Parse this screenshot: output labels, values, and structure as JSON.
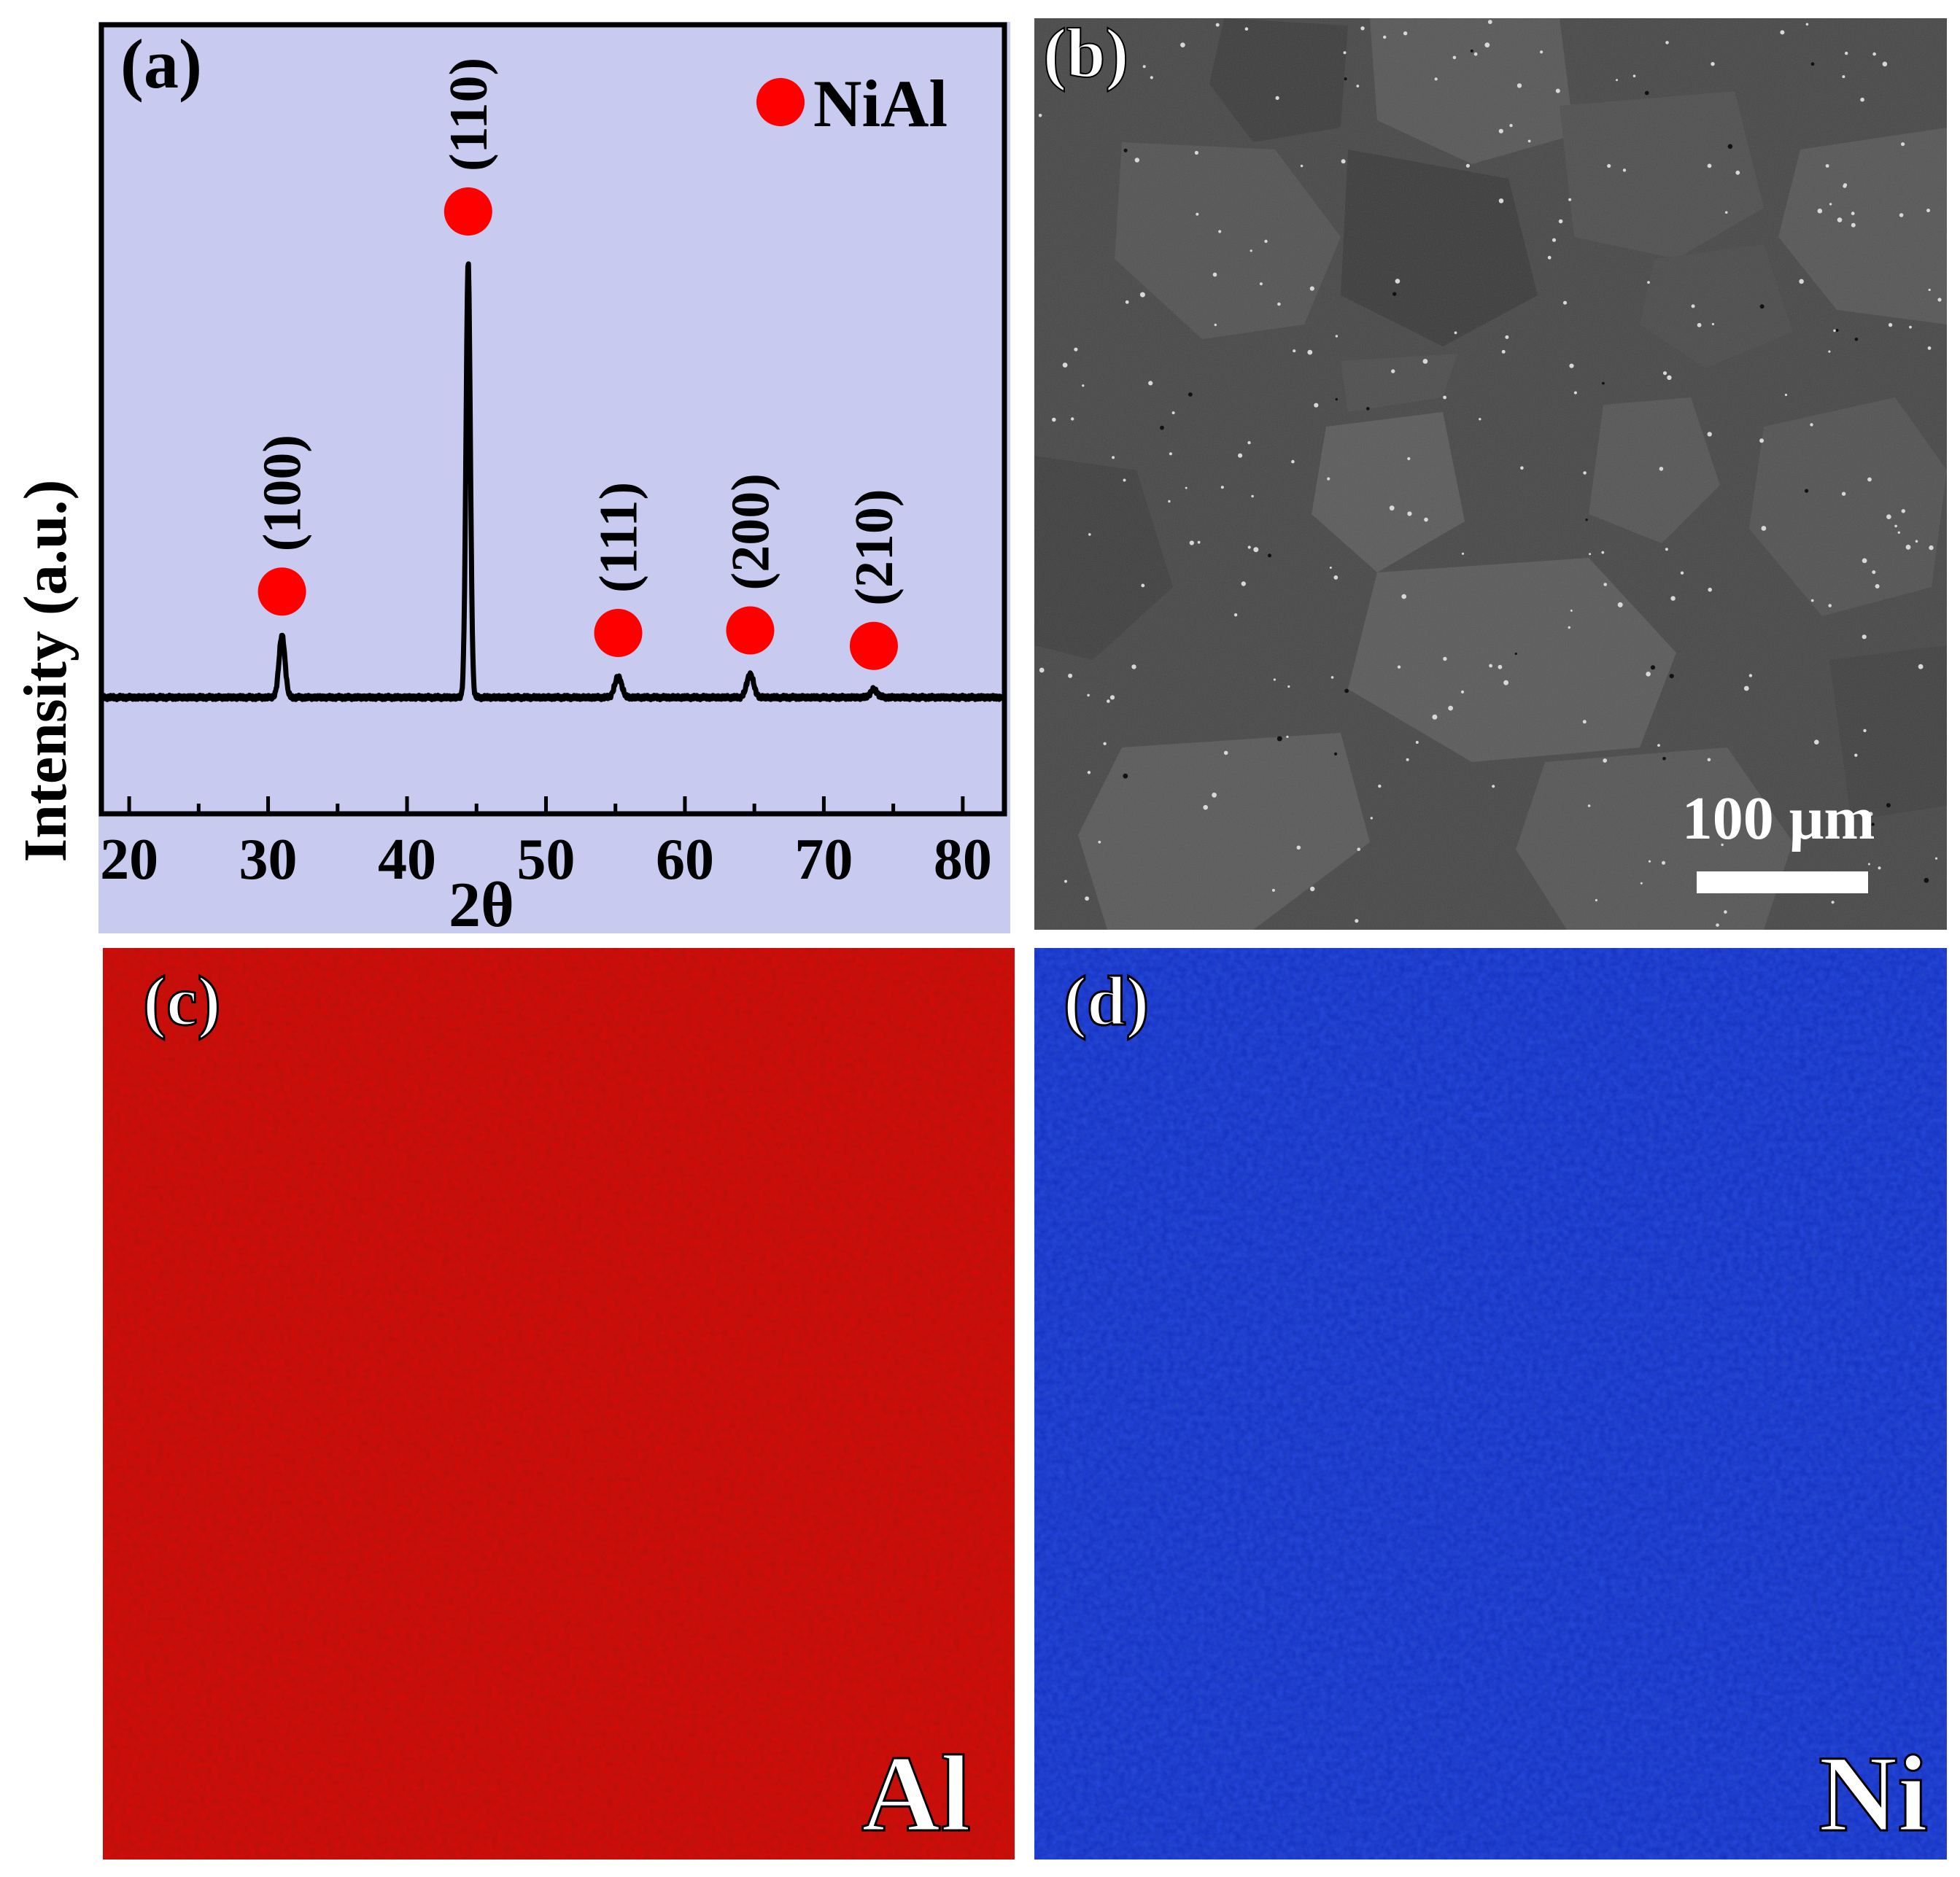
{
  "panels": {
    "a": {
      "label": "(a)"
    },
    "b": {
      "label": "(b)",
      "scalebar_text": "100 μm"
    },
    "c": {
      "label": "(c)",
      "element": "Al",
      "map_color": "#c8140f"
    },
    "d": {
      "label": "(d)",
      "element": "Ni",
      "map_color": "#1532c8"
    }
  },
  "colors": {
    "plot_background": "#c8cbef",
    "trace": "#000000",
    "marker": "#ff0000",
    "sem_base": "#484848"
  },
  "chart_data": {
    "type": "line",
    "xlabel": "2θ",
    "ylabel": "Intensity (a.u.)",
    "xlim": [
      18,
      83
    ],
    "ylim": [
      0,
      100
    ],
    "x_ticks": [
      20,
      30,
      40,
      50,
      60,
      70,
      80
    ],
    "y_ticks_shown": false,
    "grid": false,
    "legend": {
      "position": "top-right",
      "entries": [
        {
          "name": "NiAl",
          "marker": "filled-circle",
          "color": "#ff0000"
        }
      ]
    },
    "baseline": 16,
    "series": [
      {
        "name": "NiAl",
        "peaks": [
          {
            "x": 31.0,
            "height": 28,
            "hkl": "(100)"
          },
          {
            "x": 44.4,
            "height": 100,
            "hkl": "(110)"
          },
          {
            "x": 55.2,
            "height": 20,
            "hkl": "(111)"
          },
          {
            "x": 64.7,
            "height": 20.5,
            "hkl": "(200)"
          },
          {
            "x": 73.6,
            "height": 17.5,
            "hkl": "(210)"
          }
        ]
      }
    ]
  }
}
